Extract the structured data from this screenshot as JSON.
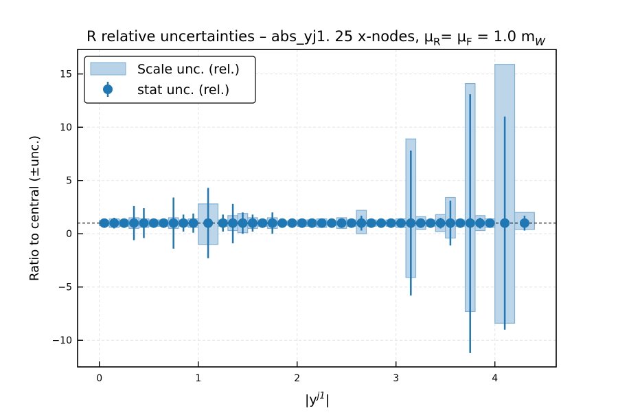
{
  "chart_data": {
    "type": "scatter",
    "title": "R relative uncertainties  –  abs_yj1. 25 x-nodes, μ",
    "title_sub1": "R",
    "title_mid": "= μ",
    "title_sub2": "F",
    "title_end": " = 1.0 m",
    "title_sub3": "W",
    "xlabel": "|y",
    "xlabel_sup": "j1",
    "xlabel_end": "|",
    "ylabel": "Ratio to central (±unc.)",
    "xlim": [
      -0.22,
      4.62
    ],
    "ylim": [
      -12.5,
      17.3
    ],
    "xticks": [
      0,
      1,
      2,
      3,
      4
    ],
    "yticks": [
      -10,
      -5,
      0,
      5,
      10,
      15
    ],
    "grid": true,
    "reference_line": 1.0,
    "legend_position": "top-left",
    "legend": {
      "band": "Scale unc. (rel.)",
      "points": "stat unc. (rel.)"
    },
    "colors": {
      "points": "#1f77b4",
      "band_fill": "#b8d3e8",
      "band_edge": "#7fb0d5",
      "reference": "#000000"
    },
    "x": [
      0.05,
      0.15,
      0.25,
      0.35,
      0.45,
      0.55,
      0.65,
      0.75,
      0.85,
      0.95,
      1.1,
      1.25,
      1.35,
      1.45,
      1.55,
      1.65,
      1.75,
      1.85,
      1.95,
      2.05,
      2.15,
      2.25,
      2.35,
      2.45,
      2.55,
      2.65,
      2.75,
      2.85,
      2.95,
      3.05,
      3.15,
      3.25,
      3.35,
      3.45,
      3.55,
      3.65,
      3.75,
      3.85,
      3.95,
      4.1,
      4.3
    ],
    "stat_lo": [
      0.85,
      0.5,
      0.75,
      -0.6,
      -0.4,
      0.6,
      0.7,
      -1.4,
      0.2,
      0.1,
      -2.3,
      0.2,
      -0.9,
      0.0,
      0.2,
      0.7,
      0.0,
      0.9,
      1.0,
      1.0,
      1.0,
      1.0,
      1.0,
      1.0,
      0.8,
      0.3,
      1.0,
      1.0,
      1.0,
      1.0,
      -5.8,
      0.6,
      1.0,
      0.5,
      -1.1,
      1.0,
      -11.2,
      0.5,
      0.7,
      -9.0,
      0.3
    ],
    "stat_hi": [
      1.15,
      1.5,
      1.25,
      2.6,
      2.4,
      1.4,
      1.3,
      3.4,
      1.8,
      1.9,
      4.3,
      1.8,
      2.8,
      2.0,
      1.8,
      1.3,
      2.0,
      1.1,
      1.0,
      1.0,
      1.0,
      1.0,
      1.0,
      1.0,
      1.2,
      1.7,
      1.0,
      1.0,
      1.0,
      1.0,
      7.8,
      1.4,
      1.0,
      1.5,
      3.1,
      1.0,
      13.1,
      1.5,
      1.3,
      11.0,
      1.7
    ],
    "scale_bands": [
      {
        "x0": 0.0,
        "x1": 0.1,
        "lo": 0.75,
        "hi": 1.25
      },
      {
        "x0": 0.1,
        "x1": 0.2,
        "lo": 0.6,
        "hi": 1.4
      },
      {
        "x0": 0.2,
        "x1": 0.3,
        "lo": 0.7,
        "hi": 1.3
      },
      {
        "x0": 0.3,
        "x1": 0.4,
        "lo": 0.5,
        "hi": 1.5
      },
      {
        "x0": 0.4,
        "x1": 0.5,
        "lo": 0.6,
        "hi": 1.4
      },
      {
        "x0": 0.5,
        "x1": 0.6,
        "lo": 0.7,
        "hi": 1.3
      },
      {
        "x0": 0.6,
        "x1": 0.7,
        "lo": 0.7,
        "hi": 1.3
      },
      {
        "x0": 0.7,
        "x1": 0.8,
        "lo": 0.5,
        "hi": 1.5
      },
      {
        "x0": 0.8,
        "x1": 0.9,
        "lo": 0.7,
        "hi": 1.3
      },
      {
        "x0": 0.9,
        "x1": 1.0,
        "lo": 0.6,
        "hi": 1.4
      },
      {
        "x0": 1.0,
        "x1": 1.2,
        "lo": -1.0,
        "hi": 2.8
      },
      {
        "x0": 1.2,
        "x1": 1.3,
        "lo": 0.7,
        "hi": 1.3
      },
      {
        "x0": 1.3,
        "x1": 1.4,
        "lo": 0.3,
        "hi": 1.7
      },
      {
        "x0": 1.4,
        "x1": 1.5,
        "lo": 0.1,
        "hi": 1.9
      },
      {
        "x0": 1.5,
        "x1": 1.6,
        "lo": 0.5,
        "hi": 1.5
      },
      {
        "x0": 1.6,
        "x1": 1.7,
        "lo": 0.7,
        "hi": 1.3
      },
      {
        "x0": 1.7,
        "x1": 1.8,
        "lo": 0.5,
        "hi": 1.5
      },
      {
        "x0": 1.8,
        "x1": 1.9,
        "lo": 0.8,
        "hi": 1.2
      },
      {
        "x0": 1.9,
        "x1": 2.0,
        "lo": 0.8,
        "hi": 1.2
      },
      {
        "x0": 2.0,
        "x1": 2.1,
        "lo": 0.7,
        "hi": 1.3
      },
      {
        "x0": 2.1,
        "x1": 2.2,
        "lo": 0.7,
        "hi": 1.3
      },
      {
        "x0": 2.2,
        "x1": 2.3,
        "lo": 0.6,
        "hi": 1.4
      },
      {
        "x0": 2.3,
        "x1": 2.4,
        "lo": 0.8,
        "hi": 1.2
      },
      {
        "x0": 2.4,
        "x1": 2.5,
        "lo": 0.5,
        "hi": 1.5
      },
      {
        "x0": 2.5,
        "x1": 2.6,
        "lo": 0.7,
        "hi": 1.3
      },
      {
        "x0": 2.6,
        "x1": 2.7,
        "lo": 0.0,
        "hi": 2.2
      },
      {
        "x0": 2.7,
        "x1": 2.8,
        "lo": 0.7,
        "hi": 1.3
      },
      {
        "x0": 2.8,
        "x1": 2.9,
        "lo": 0.8,
        "hi": 1.2
      },
      {
        "x0": 2.9,
        "x1": 3.0,
        "lo": 0.7,
        "hi": 1.3
      },
      {
        "x0": 3.0,
        "x1": 3.1,
        "lo": 0.6,
        "hi": 1.4
      },
      {
        "x0": 3.1,
        "x1": 3.2,
        "lo": -4.1,
        "hi": 8.9
      },
      {
        "x0": 3.2,
        "x1": 3.3,
        "lo": 0.4,
        "hi": 1.6
      },
      {
        "x0": 3.3,
        "x1": 3.4,
        "lo": 0.7,
        "hi": 1.3
      },
      {
        "x0": 3.4,
        "x1": 3.5,
        "lo": 0.2,
        "hi": 1.8
      },
      {
        "x0": 3.5,
        "x1": 3.6,
        "lo": -0.4,
        "hi": 3.4
      },
      {
        "x0": 3.6,
        "x1": 3.7,
        "lo": 0.7,
        "hi": 1.3
      },
      {
        "x0": 3.7,
        "x1": 3.8,
        "lo": -7.3,
        "hi": 14.1
      },
      {
        "x0": 3.8,
        "x1": 3.9,
        "lo": 0.3,
        "hi": 1.7
      },
      {
        "x0": 3.9,
        "x1": 4.0,
        "lo": 0.6,
        "hi": 1.4
      },
      {
        "x0": 4.0,
        "x1": 4.2,
        "lo": -8.4,
        "hi": 15.9
      },
      {
        "x0": 4.2,
        "x1": 4.4,
        "lo": 0.4,
        "hi": 2.0
      }
    ]
  }
}
